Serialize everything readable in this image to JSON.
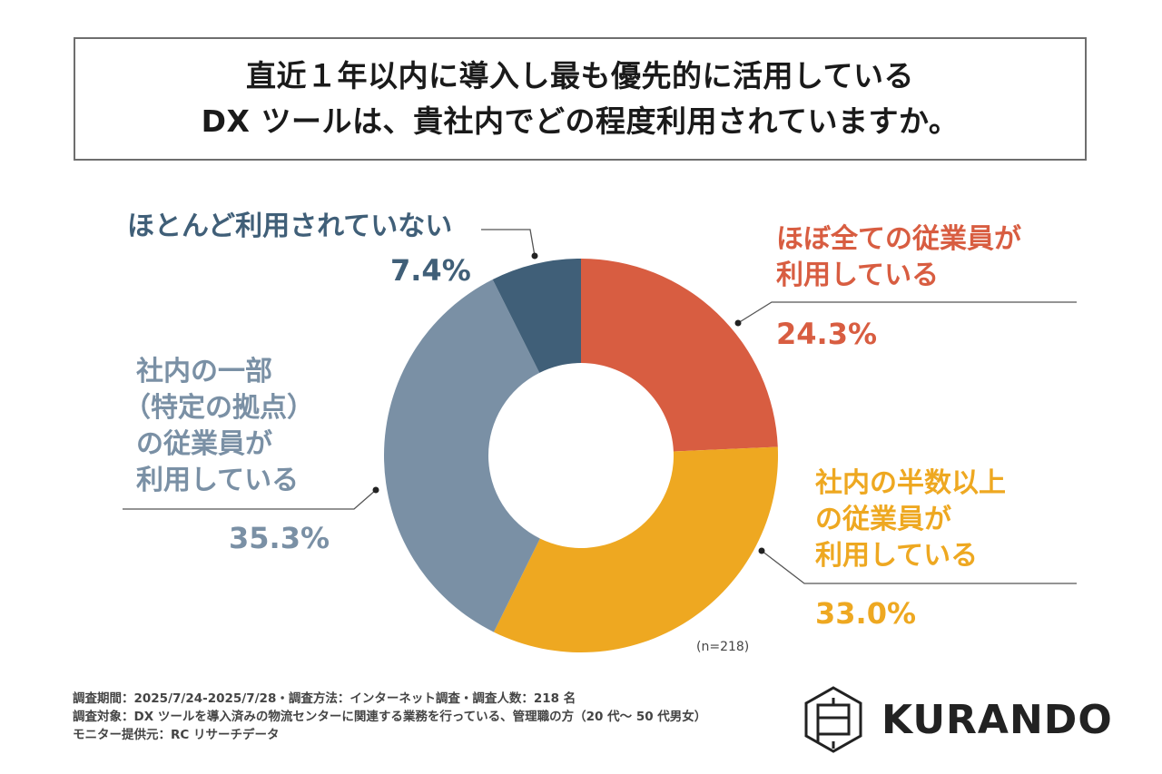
{
  "title": {
    "line1": "直近１年以内に導入し最も優先的に活用している",
    "line2": "DX ツールは、貴社内でどの程度利用されていますか。"
  },
  "chart_data": {
    "type": "pie",
    "subtype": "donut",
    "title": "直近１年以内に導入し最も優先的に活用しているDX ツールは、貴社内でどの程度利用されていますか。",
    "start": "top",
    "direction": "clockwise",
    "unit": "%",
    "sample_size_label": "(n=218)",
    "slices": [
      {
        "label_lines": [
          "ほぼ全ての従業員が",
          "利用している"
        ],
        "value": 24.3,
        "value_label": "24.3%",
        "color": "#d85d41"
      },
      {
        "label_lines": [
          "社内の半数以上",
          "の従業員が",
          "利用している"
        ],
        "value": 33.0,
        "value_label": "33.0%",
        "color": "#eea821"
      },
      {
        "label_lines": [
          "社内の一部",
          "（特定の拠点）",
          "の従業員が",
          "利用している"
        ],
        "value": 35.3,
        "value_label": "35.3%",
        "color": "#7a90a5"
      },
      {
        "label_lines": [
          "ほとんど利用されていない"
        ],
        "value": 7.4,
        "value_label": "7.4%",
        "color": "#405f78"
      }
    ]
  },
  "footer": {
    "lines": [
      "調査期間：2025/7/24-2025/7/28・調査方法：インターネット調査・調査人数：218 名",
      "調査対象：DX ツールを導入済みの物流センターに関連する業務を行っている、管理職の方（20 代～ 50 代男女）",
      "モニター提供元：RC リサーチデータ"
    ]
  },
  "logo": {
    "icon": "kurando-hexagon-icon",
    "text": "KURANDO"
  }
}
